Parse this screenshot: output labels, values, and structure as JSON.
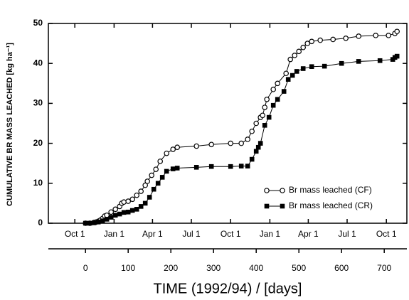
{
  "chart_data": {
    "type": "line",
    "xlabel": "TIME  (1992/94)  /  [days]",
    "ylabel": "CUMULATIVE BR  MASS LEACHED  [kg ha⁻¹]",
    "xlim": [
      -87,
      753
    ],
    "ylim": [
      0,
      50
    ],
    "xticks": [
      0,
      100,
      200,
      300,
      400,
      500,
      600,
      700
    ],
    "yticks": [
      0,
      10,
      20,
      30,
      40,
      50
    ],
    "date_ticks": [
      {
        "value": -25,
        "label": "Oct 1"
      },
      {
        "value": 67,
        "label": "Jan 1"
      },
      {
        "value": 157,
        "label": "Apr 1"
      },
      {
        "value": 248,
        "label": "Jul 1"
      },
      {
        "value": 340,
        "label": "Oct 1"
      },
      {
        "value": 432,
        "label": "Jan 1"
      },
      {
        "value": 522,
        "label": "Apr 1"
      },
      {
        "value": 613,
        "label": "Jul 1"
      },
      {
        "value": 705,
        "label": "Oct 1"
      }
    ],
    "legend": "lower-right",
    "series": [
      {
        "name": "Br mass leached (CF)",
        "color": "#000000",
        "marker": "open-circle",
        "x": [
          0,
          10,
          20,
          25,
          30,
          35,
          40,
          45,
          50,
          60,
          70,
          80,
          85,
          90,
          100,
          110,
          120,
          130,
          140,
          145,
          155,
          165,
          175,
          190,
          205,
          215,
          260,
          295,
          340,
          365,
          380,
          390,
          400,
          410,
          415,
          420,
          425,
          440,
          450,
          470,
          480,
          490,
          500,
          510,
          520,
          530,
          550,
          580,
          610,
          640,
          680,
          710,
          725,
          730
        ],
        "values": [
          0,
          0,
          0.2,
          0.3,
          0.5,
          0.8,
          1.2,
          1.8,
          2,
          2.8,
          3.5,
          4.2,
          5,
          5.3,
          5.5,
          6,
          7,
          8,
          9.5,
          10.5,
          12,
          13.5,
          15.5,
          17.5,
          18.5,
          19,
          19.3,
          19.7,
          20,
          20,
          21,
          23,
          25,
          26.5,
          27,
          29,
          31,
          33.5,
          35,
          37.5,
          41,
          42,
          43,
          44,
          45,
          45.5,
          45.8,
          46,
          46.3,
          46.8,
          47,
          47,
          47.5,
          48
        ]
      },
      {
        "name": "Br mass leached (CR)",
        "color": "#000000",
        "marker": "filled-square",
        "x": [
          0,
          10,
          20,
          30,
          40,
          50,
          60,
          70,
          80,
          90,
          100,
          110,
          120,
          130,
          140,
          150,
          160,
          170,
          180,
          190,
          205,
          215,
          260,
          295,
          340,
          365,
          380,
          390,
          400,
          405,
          410,
          420,
          430,
          440,
          450,
          465,
          475,
          485,
          495,
          510,
          530,
          560,
          600,
          640,
          690,
          720,
          725,
          730
        ],
        "values": [
          0,
          0,
          0.1,
          0.3,
          0.6,
          1,
          1.5,
          2,
          2.3,
          2.7,
          2.8,
          3.2,
          3.5,
          4.2,
          5,
          6.5,
          8.5,
          10,
          11.5,
          13,
          13.6,
          13.8,
          14,
          14.2,
          14.2,
          14.3,
          14.3,
          16,
          18,
          19,
          20,
          24.5,
          26.5,
          29.5,
          31,
          33,
          36,
          37,
          38,
          38.7,
          39.2,
          39.3,
          40,
          40.5,
          40.7,
          41,
          41.5,
          41.8
        ]
      }
    ]
  }
}
